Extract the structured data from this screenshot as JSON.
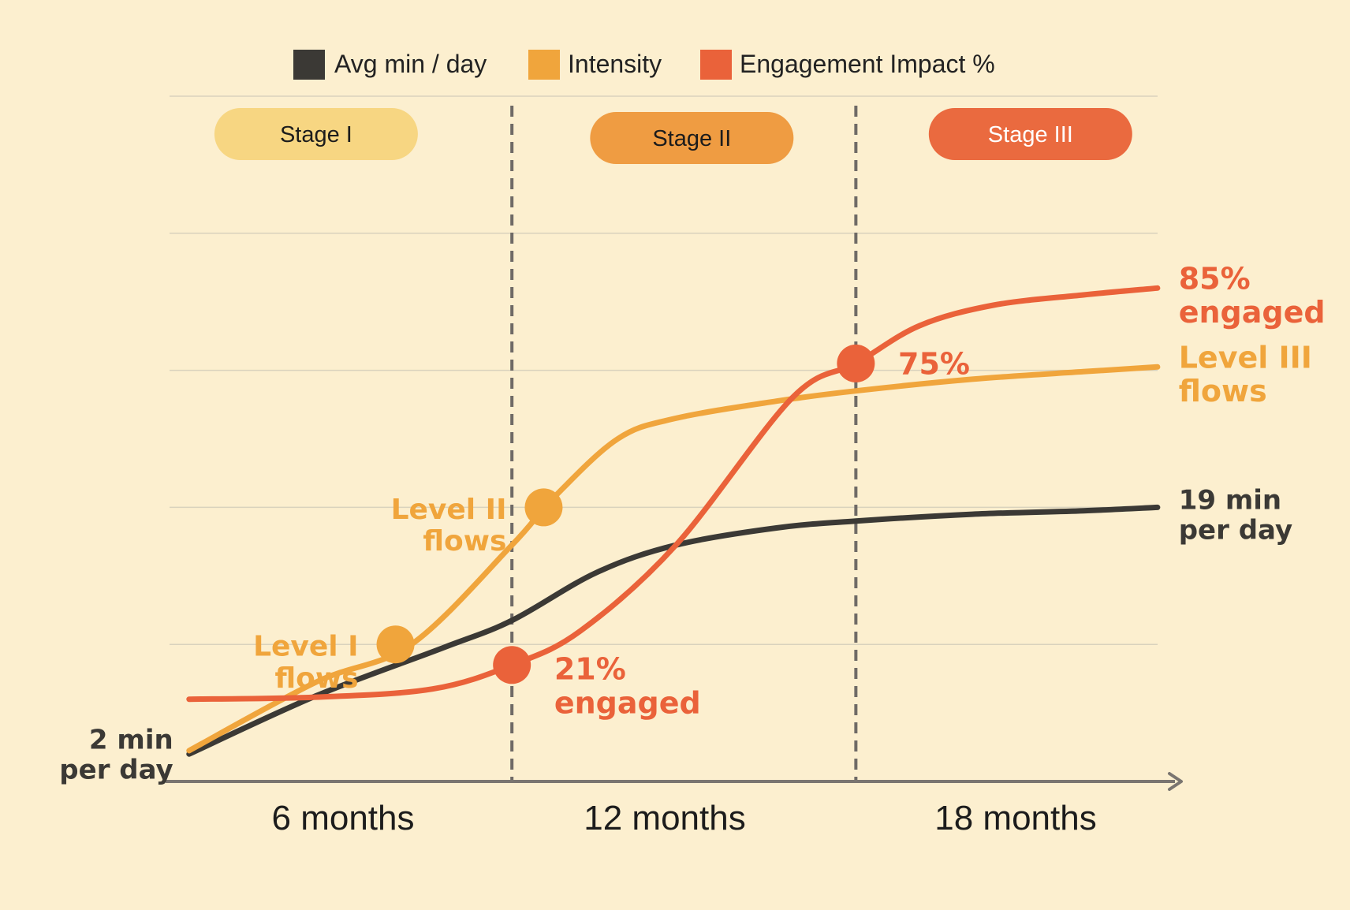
{
  "colors": {
    "background": "#fcefcf",
    "avg": "#3b3935",
    "intensity": "#f0a53c",
    "engagement": "#ea623a",
    "stage1": "#f7d682",
    "stage2": "#ef9c42",
    "stage3": "#ea6a3f",
    "grid": "#d9d2bd",
    "axis": "#7a7570",
    "divider": "#6f6a66"
  },
  "chart_data": {
    "type": "line",
    "title": "",
    "xlabel": "",
    "ylabel": "",
    "xlim": [
      2,
      21
    ],
    "ylim": [
      0,
      100
    ],
    "x_ticks": [
      {
        "value": 6,
        "label": "6 months"
      },
      {
        "value": 12,
        "label": "12 months"
      },
      {
        "value": 18,
        "label": "18 months"
      }
    ],
    "gridlines_y": [
      20,
      40,
      60,
      80
    ],
    "legend": [
      {
        "key": "avg",
        "label": "Avg min / day"
      },
      {
        "key": "intensity",
        "label": "Intensity"
      },
      {
        "key": "engagement",
        "label": "Engagement Impact %"
      }
    ],
    "stage_dividers": [
      8.5,
      15
    ],
    "stages": [
      {
        "label": "Stage I",
        "x": 4.8,
        "color_key": "stage1",
        "text_color": "#1c1c1c"
      },
      {
        "label": "Stage II",
        "x": 11.9,
        "color_key": "stage2",
        "text_color": "#1c1c1c"
      },
      {
        "label": "Stage III",
        "x": 18.3,
        "color_key": "stage3",
        "text_color": "#ffffff"
      }
    ],
    "series": [
      {
        "name": "Avg min / day",
        "key": "avg",
        "x": [
          2.4,
          4.8,
          7.2,
          8.5,
          10.1,
          11.6,
          13.5,
          15,
          17.2,
          19.3,
          20.7
        ],
        "values": [
          4,
          12.5,
          19.5,
          23.5,
          30.5,
          34.5,
          37,
          38,
          39,
          39.5,
          40
        ]
      },
      {
        "name": "Intensity",
        "key": "intensity",
        "x": [
          2.4,
          4.8,
          6.6,
          8.5,
          9.3,
          10.5,
          11.6,
          13.5,
          15,
          17.2,
          19.3,
          20.7
        ],
        "values": [
          4.5,
          14.5,
          20,
          34.5,
          41.5,
          50,
          53,
          55.5,
          57,
          58.7,
          59.8,
          60.5
        ]
      },
      {
        "name": "Engagement Impact %",
        "key": "engagement",
        "x": [
          2.4,
          4.8,
          7,
          8.5,
          9.8,
          11.6,
          13.8,
          15,
          16.2,
          17.6,
          19.3,
          20.7
        ],
        "values": [
          12,
          12.3,
          13.5,
          17,
          22,
          34.5,
          56,
          61,
          66.5,
          69.5,
          71,
          72
        ]
      }
    ],
    "markers": [
      {
        "series": "intensity",
        "x": 6.3,
        "y": 20
      },
      {
        "series": "intensity",
        "x": 9.1,
        "y": 40
      },
      {
        "series": "engagement",
        "x": 8.5,
        "y": 17
      },
      {
        "series": "engagement",
        "x": 15,
        "y": 61
      }
    ],
    "annotations": [
      {
        "key": "start-avg",
        "lines": [
          "2 min",
          "per day"
        ],
        "x": 2.1,
        "y": 4,
        "anchor": "end",
        "color_key": "avg",
        "size": 34
      },
      {
        "key": "level1",
        "lines": [
          "Level I",
          "flows"
        ],
        "x": 5.6,
        "y": 17.5,
        "anchor": "end",
        "color_key": "intensity",
        "size": 36
      },
      {
        "key": "level2",
        "lines": [
          "Level II",
          "flows"
        ],
        "x": 8.4,
        "y": 37.5,
        "anchor": "end",
        "color_key": "intensity",
        "size": 36
      },
      {
        "key": "engaged21",
        "value": "21%",
        "lines": [
          "21%",
          "engaged"
        ],
        "x": 9.3,
        "y": 14,
        "anchor": "start",
        "color_key": "engagement",
        "size": 38
      },
      {
        "key": "engaged75",
        "value": "75%",
        "lines": [
          "75%"
        ],
        "x": 15.8,
        "y": 61,
        "anchor": "start",
        "color_key": "engagement",
        "size": 38
      },
      {
        "key": "engaged85",
        "value": "85%",
        "lines": [
          "85%",
          "engaged"
        ],
        "x": 21.1,
        "y": 71,
        "anchor": "start",
        "color_key": "engagement",
        "size": 38
      },
      {
        "key": "level3",
        "lines": [
          "Level III",
          "flows"
        ],
        "x": 21.1,
        "y": 59.5,
        "anchor": "start",
        "color_key": "intensity",
        "size": 38
      },
      {
        "key": "end-avg",
        "value": "19 min",
        "lines": [
          "19 min",
          "per day"
        ],
        "x": 21.1,
        "y": 39,
        "anchor": "start",
        "color_key": "avg",
        "size": 34
      }
    ]
  }
}
